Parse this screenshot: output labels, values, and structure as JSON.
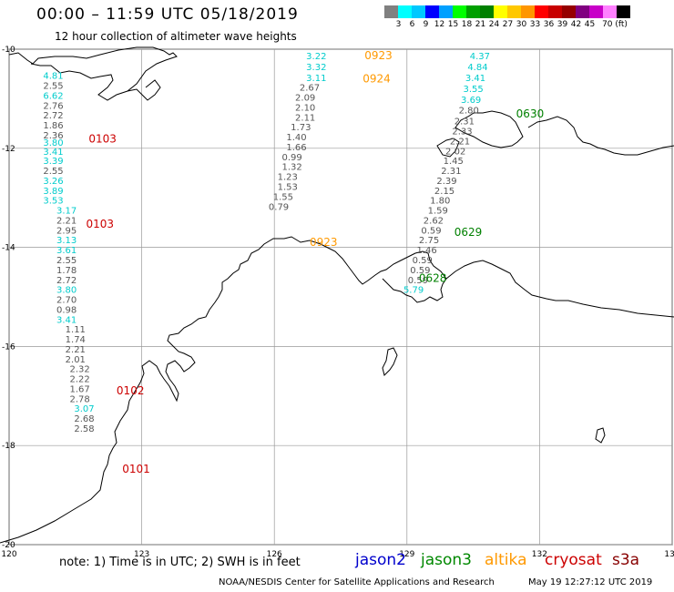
{
  "title": "00:00 – 11:59 UTC 05/18/2019",
  "subtitle": "12 hour collection of altimeter wave heights",
  "colorbar": {
    "colors": [
      "#808080",
      "#00ffff",
      "#00c8ff",
      "#0000ff",
      "#00a0ff",
      "#00ff00",
      "#00a000",
      "#008000",
      "#ffff00",
      "#ffc800",
      "#ff9600",
      "#ff0000",
      "#c80000",
      "#960000",
      "#800080",
      "#c800c8",
      "#ff80ff",
      "#000000"
    ],
    "labels": [
      "3",
      "6",
      "9",
      "12",
      "15",
      "18",
      "21",
      "24",
      "27",
      "30",
      "33",
      "36",
      "39",
      "42",
      "45",
      "70 (ft)"
    ]
  },
  "axes": {
    "lon_ticks": [
      "120",
      "123",
      "126",
      "129",
      "132",
      "135"
    ],
    "lat_ticks": [
      "-10",
      "-12",
      "-14",
      "-16",
      "-18",
      "-20"
    ],
    "lon_range": [
      120,
      135
    ],
    "lat_range": [
      -20,
      -10
    ],
    "grid": true
  },
  "time_labels": [
    {
      "text": "0923",
      "lon": 128.04,
      "lat": -10.2,
      "color": "#ff9900"
    },
    {
      "text": "0924",
      "lon": 128.0,
      "lat": -10.67,
      "color": "#ff9900"
    },
    {
      "text": "0630",
      "lon": 131.47,
      "lat": -11.38,
      "color": "#008000"
    },
    {
      "text": "0103",
      "lon": 121.8,
      "lat": -11.88,
      "color": "#cc0000"
    },
    {
      "text": "0103",
      "lon": 121.74,
      "lat": -13.6,
      "color": "#cc0000"
    },
    {
      "text": "0629",
      "lon": 130.07,
      "lat": -13.77,
      "color": "#008000"
    },
    {
      "text": "0923",
      "lon": 126.8,
      "lat": -13.97,
      "color": "#ff9900"
    },
    {
      "text": "0628",
      "lon": 129.27,
      "lat": -14.7,
      "color": "#008000"
    },
    {
      "text": "0102",
      "lon": 122.43,
      "lat": -16.97,
      "color": "#cc0000"
    },
    {
      "text": "0101",
      "lon": 122.56,
      "lat": -18.55,
      "color": "#cc0000"
    }
  ],
  "tracks": [
    {
      "name": "track-west",
      "points": [
        {
          "v": "4.81",
          "lon": 121.0,
          "lat": -10.6,
          "c": "#00cccc"
        },
        {
          "v": "2.55",
          "lon": 121.0,
          "lat": -10.8,
          "c": "#555555"
        },
        {
          "v": "6.62",
          "lon": 121.0,
          "lat": -11.0,
          "c": "#00cccc"
        },
        {
          "v": "2.76",
          "lon": 121.0,
          "lat": -11.2,
          "c": "#555555"
        },
        {
          "v": "2.72",
          "lon": 121.0,
          "lat": -11.4,
          "c": "#555555"
        },
        {
          "v": "1.86",
          "lon": 121.0,
          "lat": -11.6,
          "c": "#555555"
        },
        {
          "v": "2.36",
          "lon": 121.0,
          "lat": -11.8,
          "c": "#555555"
        },
        {
          "v": "3.80",
          "lon": 121.0,
          "lat": -11.95,
          "c": "#00cccc"
        },
        {
          "v": "3.41",
          "lon": 121.0,
          "lat": -12.13,
          "c": "#00cccc"
        },
        {
          "v": "3.39",
          "lon": 121.0,
          "lat": -12.32,
          "c": "#00cccc"
        },
        {
          "v": "2.55",
          "lon": 121.0,
          "lat": -12.52,
          "c": "#555555"
        },
        {
          "v": "3.26",
          "lon": 121.0,
          "lat": -12.72,
          "c": "#00cccc"
        },
        {
          "v": "3.89",
          "lon": 121.0,
          "lat": -12.92,
          "c": "#00cccc"
        },
        {
          "v": "3.53",
          "lon": 121.0,
          "lat": -13.12,
          "c": "#00cccc"
        },
        {
          "v": "3.17",
          "lon": 121.3,
          "lat": -13.32,
          "c": "#00cccc"
        },
        {
          "v": "2.21",
          "lon": 121.3,
          "lat": -13.52,
          "c": "#555555"
        },
        {
          "v": "2.95",
          "lon": 121.3,
          "lat": -13.72,
          "c": "#555555"
        },
        {
          "v": "3.13",
          "lon": 121.3,
          "lat": -13.92,
          "c": "#00cccc"
        },
        {
          "v": "3.61",
          "lon": 121.3,
          "lat": -14.12,
          "c": "#00cccc"
        },
        {
          "v": "2.55",
          "lon": 121.3,
          "lat": -14.32,
          "c": "#555555"
        },
        {
          "v": "1.78",
          "lon": 121.3,
          "lat": -14.52,
          "c": "#555555"
        },
        {
          "v": "2.72",
          "lon": 121.3,
          "lat": -14.72,
          "c": "#555555"
        },
        {
          "v": "3.80",
          "lon": 121.3,
          "lat": -14.92,
          "c": "#00cccc"
        },
        {
          "v": "2.70",
          "lon": 121.3,
          "lat": -15.12,
          "c": "#555555"
        },
        {
          "v": "0.98",
          "lon": 121.3,
          "lat": -15.32,
          "c": "#555555"
        },
        {
          "v": "3.41",
          "lon": 121.3,
          "lat": -15.52,
          "c": "#00cccc"
        },
        {
          "v": "1.11",
          "lon": 121.5,
          "lat": -15.72,
          "c": "#555555"
        },
        {
          "v": "1.74",
          "lon": 121.5,
          "lat": -15.92,
          "c": "#555555"
        },
        {
          "v": "2.21",
          "lon": 121.5,
          "lat": -16.12,
          "c": "#555555"
        },
        {
          "v": "2.01",
          "lon": 121.5,
          "lat": -16.32,
          "c": "#555555"
        },
        {
          "v": "2.32",
          "lon": 121.6,
          "lat": -16.52,
          "c": "#555555"
        },
        {
          "v": "2.22",
          "lon": 121.6,
          "lat": -16.72,
          "c": "#555555"
        },
        {
          "v": "1.67",
          "lon": 121.6,
          "lat": -16.92,
          "c": "#555555"
        },
        {
          "v": "2.78",
          "lon": 121.6,
          "lat": -17.12,
          "c": "#555555"
        },
        {
          "v": "3.07",
          "lon": 121.7,
          "lat": -17.32,
          "c": "#00cccc"
        },
        {
          "v": "2.68",
          "lon": 121.7,
          "lat": -17.52,
          "c": "#555555"
        },
        {
          "v": "2.58",
          "lon": 121.7,
          "lat": -17.72,
          "c": "#555555"
        }
      ]
    },
    {
      "name": "track-central",
      "points": [
        {
          "v": "3.22",
          "lon": 126.95,
          "lat": -10.2,
          "c": "#00cccc"
        },
        {
          "v": "3.32",
          "lon": 126.95,
          "lat": -10.42,
          "c": "#00cccc"
        },
        {
          "v": "3.11",
          "lon": 126.95,
          "lat": -10.64,
          "c": "#00cccc"
        },
        {
          "v": "2.67",
          "lon": 126.8,
          "lat": -10.84,
          "c": "#555555"
        },
        {
          "v": "2.09",
          "lon": 126.7,
          "lat": -11.04,
          "c": "#555555"
        },
        {
          "v": "2.10",
          "lon": 126.7,
          "lat": -11.24,
          "c": "#555555"
        },
        {
          "v": "2.11",
          "lon": 126.7,
          "lat": -11.44,
          "c": "#555555"
        },
        {
          "v": "1.73",
          "lon": 126.6,
          "lat": -11.64,
          "c": "#555555"
        },
        {
          "v": "1.40",
          "lon": 126.5,
          "lat": -11.84,
          "c": "#555555"
        },
        {
          "v": "1.66",
          "lon": 126.5,
          "lat": -12.04,
          "c": "#555555"
        },
        {
          "v": "0.99",
          "lon": 126.4,
          "lat": -12.24,
          "c": "#555555"
        },
        {
          "v": "1.32",
          "lon": 126.4,
          "lat": -12.44,
          "c": "#555555"
        },
        {
          "v": "1.23",
          "lon": 126.3,
          "lat": -12.64,
          "c": "#555555"
        },
        {
          "v": "1.53",
          "lon": 126.3,
          "lat": -12.84,
          "c": "#555555"
        },
        {
          "v": "1.55",
          "lon": 126.2,
          "lat": -13.04,
          "c": "#555555"
        },
        {
          "v": "0.79",
          "lon": 126.1,
          "lat": -13.24,
          "c": "#555555"
        }
      ]
    },
    {
      "name": "track-east",
      "points": [
        {
          "v": "4.37",
          "lon": 130.65,
          "lat": -10.2,
          "c": "#00cccc"
        },
        {
          "v": "4.84",
          "lon": 130.6,
          "lat": -10.42,
          "c": "#00cccc"
        },
        {
          "v": "3.41",
          "lon": 130.55,
          "lat": -10.64,
          "c": "#00cccc"
        },
        {
          "v": "3.55",
          "lon": 130.5,
          "lat": -10.86,
          "c": "#00cccc"
        },
        {
          "v": "3.69",
          "lon": 130.45,
          "lat": -11.08,
          "c": "#00cccc"
        },
        {
          "v": "2.80",
          "lon": 130.4,
          "lat": -11.3,
          "c": "#555555"
        },
        {
          "v": "2.31",
          "lon": 130.3,
          "lat": -11.52,
          "c": "#555555"
        },
        {
          "v": "2.33",
          "lon": 130.25,
          "lat": -11.72,
          "c": "#555555"
        },
        {
          "v": "2.21",
          "lon": 130.2,
          "lat": -11.92,
          "c": "#555555"
        },
        {
          "v": "2.02",
          "lon": 130.1,
          "lat": -12.12,
          "c": "#555555"
        },
        {
          "v": "1.45",
          "lon": 130.05,
          "lat": -12.32,
          "c": "#555555"
        },
        {
          "v": "2.31",
          "lon": 130.0,
          "lat": -12.52,
          "c": "#555555"
        },
        {
          "v": "2.39",
          "lon": 129.9,
          "lat": -12.72,
          "c": "#555555"
        },
        {
          "v": "2.15",
          "lon": 129.85,
          "lat": -12.92,
          "c": "#555555"
        },
        {
          "v": "1.80",
          "lon": 129.75,
          "lat": -13.12,
          "c": "#555555"
        },
        {
          "v": "1.59",
          "lon": 129.7,
          "lat": -13.32,
          "c": "#555555"
        },
        {
          "v": "2.62",
          "lon": 129.6,
          "lat": -13.52,
          "c": "#555555"
        },
        {
          "v": "0.59",
          "lon": 129.55,
          "lat": -13.72,
          "c": "#555555"
        },
        {
          "v": "2.75",
          "lon": 129.5,
          "lat": -13.92,
          "c": "#555555"
        },
        {
          "v": "1.46",
          "lon": 129.45,
          "lat": -14.12,
          "c": "#555555"
        },
        {
          "v": "0.59",
          "lon": 129.35,
          "lat": -14.32,
          "c": "#555555"
        },
        {
          "v": "0.59",
          "lon": 129.3,
          "lat": -14.52,
          "c": "#555555"
        },
        {
          "v": "0.59",
          "lon": 129.25,
          "lat": -14.72,
          "c": "#555555"
        },
        {
          "v": "5.79",
          "lon": 129.15,
          "lat": -14.92,
          "c": "#00cccc"
        }
      ]
    }
  ],
  "note": "note: 1) Time is in UTC; 2) SWH is in feet",
  "legend": [
    {
      "label": "jason2",
      "color": "#0000cc"
    },
    {
      "label": "jason3",
      "color": "#008800"
    },
    {
      "label": "altika",
      "color": "#ff9900"
    },
    {
      "label": "cryosat",
      "color": "#cc0000"
    },
    {
      "label": "s3a",
      "color": "#880000"
    }
  ],
  "credit": "NOAA/NESDIS Center for Satellite Applications and Research",
  "stamp": "May 19 12:27:12 UTC 2019"
}
